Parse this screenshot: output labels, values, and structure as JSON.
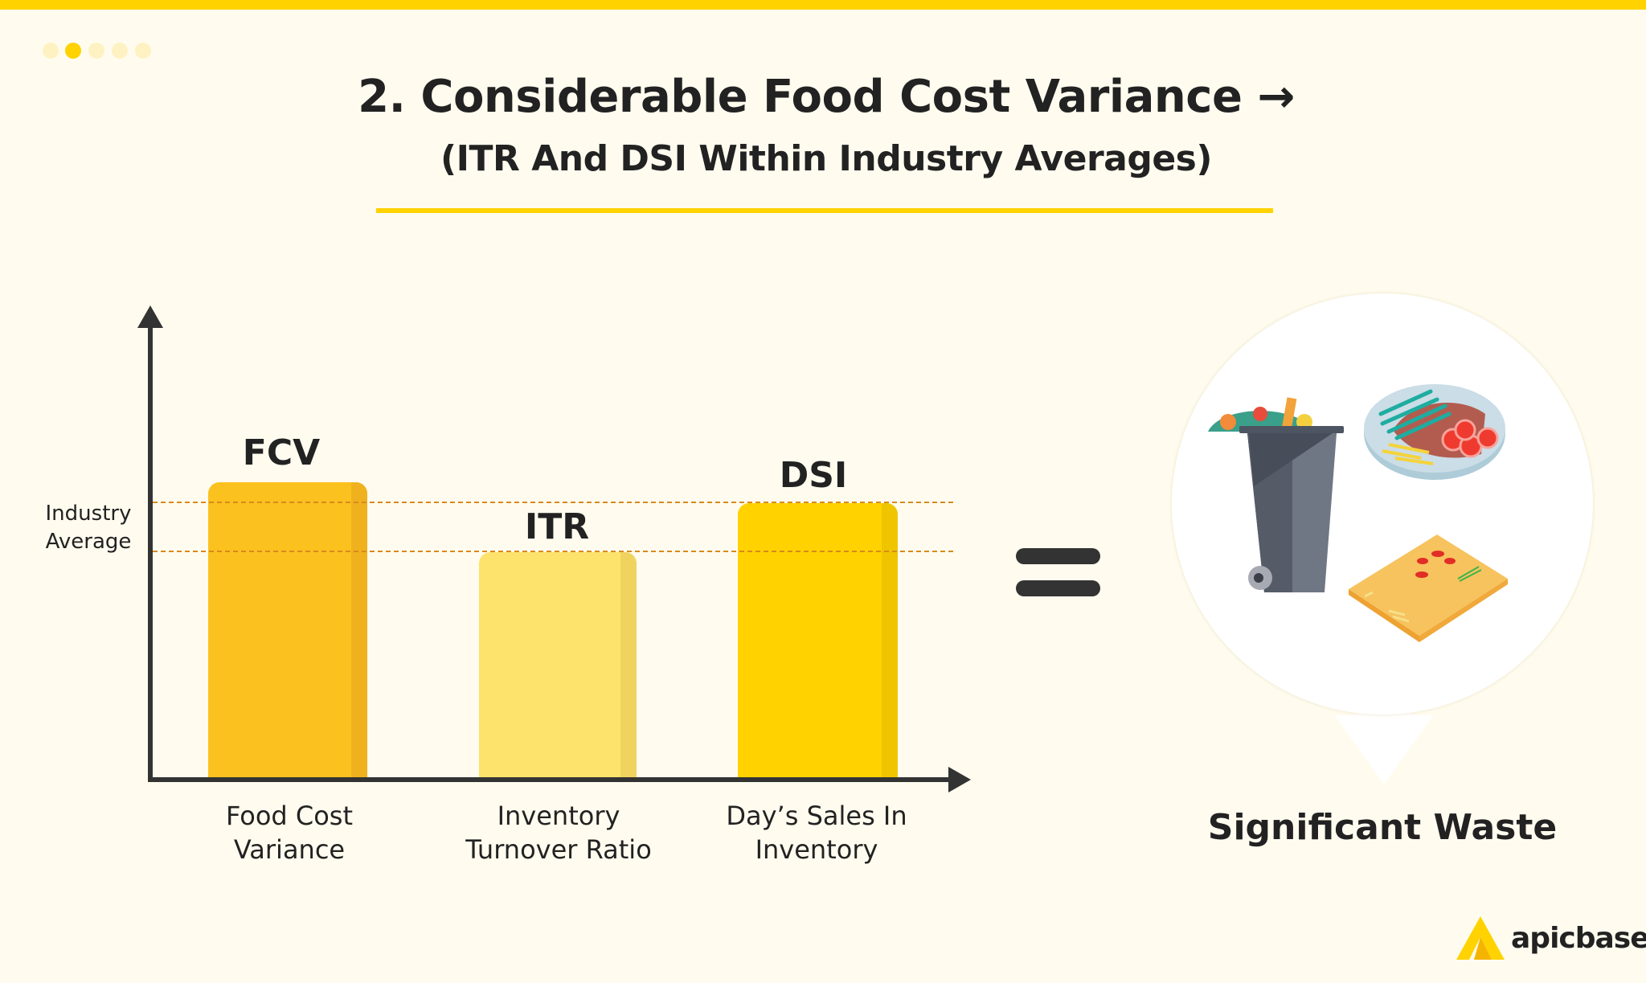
{
  "colors": {
    "accent": "#ffd200",
    "background": "#fffcef",
    "fcv_bar": "#fbc11f",
    "itr_bar": "#fde36b",
    "dsi_bar": "#ffd200",
    "industry_line": "#d98a1c",
    "text": "#222222"
  },
  "pagination": {
    "total": 5,
    "active_index": 2
  },
  "header": {
    "title": "2. Considerable Food Cost Variance →",
    "subtitle": "(ITR And DSI Within Industry Averages)"
  },
  "chart": {
    "reference_label_line1": "Industry",
    "reference_label_line2": "Average",
    "bars": [
      {
        "label": "FCV",
        "category_line1": "Food Cost",
        "category_line2": "Variance",
        "relation": "above industry average"
      },
      {
        "label": "ITR",
        "category_line1": "Inventory",
        "category_line2": "Turnover Ratio",
        "relation": "within industry average"
      },
      {
        "label": "DSI",
        "category_line1": "Day’s Sales In",
        "category_line2": "Inventory",
        "relation": "within industry average"
      }
    ]
  },
  "result": {
    "icons": [
      "trash-bin-icon",
      "plate-of-food-icon",
      "cutting-board-icon"
    ],
    "label": "Significant Waste"
  },
  "logo": {
    "text": "apicbase"
  }
}
